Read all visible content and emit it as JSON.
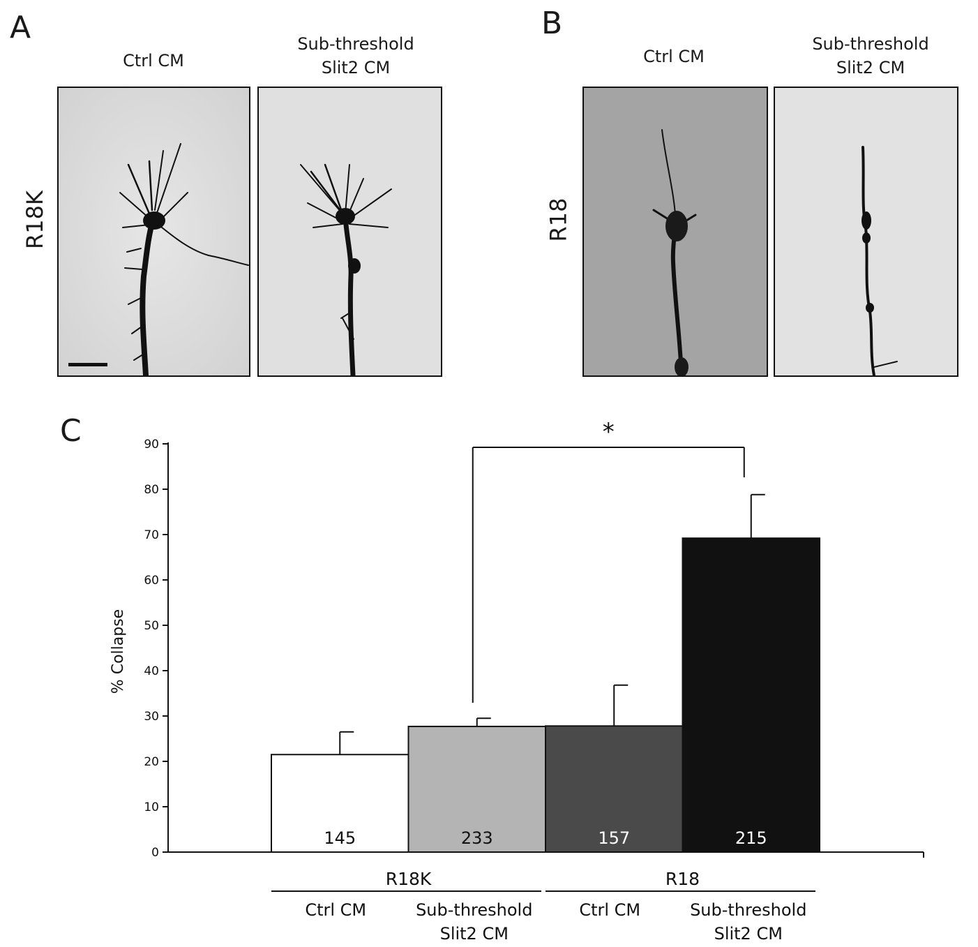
{
  "panelA": {
    "letter": "A",
    "row_label": "R18K",
    "columns": [
      {
        "label_line1": "Ctrl CM",
        "label_line2": ""
      },
      {
        "label_line1": "Sub-threshold",
        "label_line2": "Slit2 CM"
      }
    ]
  },
  "panelB": {
    "letter": "B",
    "row_label": "R18",
    "columns": [
      {
        "label_line1": "Ctrl CM",
        "label_line2": ""
      },
      {
        "label_line1": "Sub-threshold",
        "label_line2": "Slit2 CM"
      }
    ]
  },
  "panelC": {
    "letter": "C",
    "significance": "*"
  },
  "chart_data": {
    "type": "bar",
    "ylabel": "% Collapse",
    "ylim": [
      0,
      90
    ],
    "yticks": [
      0,
      10,
      20,
      30,
      40,
      50,
      60,
      70,
      80,
      90
    ],
    "bars": [
      {
        "group": "R18K",
        "condition": "Ctrl CM",
        "value": 21.5,
        "error": 5,
        "n": "145",
        "color": "#ffffff",
        "n_color": "#111111"
      },
      {
        "group": "R18K",
        "condition": "Sub-threshold Slit2 CM",
        "value": 27.7,
        "error": 1.8,
        "n": "233",
        "color": "#b4b4b4",
        "n_color": "#111111"
      },
      {
        "group": "R18",
        "condition": "Ctrl CM",
        "value": 27.8,
        "error": 9,
        "n": "157",
        "color": "#4a4a4a",
        "n_color": "#ffffff"
      },
      {
        "group": "R18",
        "condition": "Sub-threshold Slit2 CM",
        "value": 69.2,
        "error": 9.6,
        "n": "215",
        "color": "#111111",
        "n_color": "#ffffff"
      }
    ],
    "groups": [
      {
        "name": "R18K",
        "conditions": [
          {
            "line1": "Ctrl CM",
            "line2": ""
          },
          {
            "line1": "Sub-threshold",
            "line2": "Slit2 CM"
          }
        ]
      },
      {
        "name": "R18",
        "conditions": [
          {
            "line1": "Ctrl CM",
            "line2": ""
          },
          {
            "line1": "Sub-threshold",
            "line2": "Slit2 CM"
          }
        ]
      }
    ],
    "significance": {
      "from_bar": 1,
      "to_bar": 3,
      "label": "*"
    },
    "grid": false,
    "legend": "none"
  }
}
